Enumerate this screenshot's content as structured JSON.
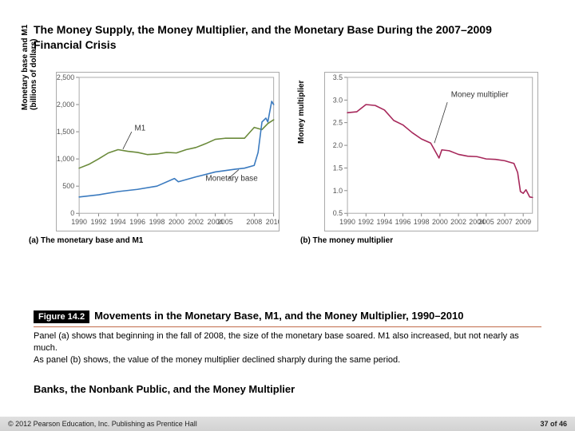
{
  "title": "The Money Supply, the Money Multiplier, and the Monetary Base During the 2007–2009 Financial Crisis",
  "panel_a": {
    "type": "line",
    "caption": "(a) The monetary base and M1",
    "ylabel": "Monetary base and M1\n(billions of dollars)",
    "xlim": [
      1990,
      2010
    ],
    "ylim": [
      0,
      2500
    ],
    "xtick_years": [
      1990,
      1992,
      1994,
      1996,
      1998,
      2000,
      2002,
      2004,
      2005,
      2008,
      2010
    ],
    "yticks": [
      0,
      500,
      "1,000",
      "1,500",
      "2,000",
      "2,500"
    ],
    "grid_color": "#aaaaaa",
    "series": [
      {
        "name": "M1",
        "label": "M1",
        "color": "#6a8a3a",
        "width": 1.6,
        "points": [
          [
            1990,
            830
          ],
          [
            1991,
            900
          ],
          [
            1992,
            1000
          ],
          [
            1993,
            1110
          ],
          [
            1994,
            1170
          ],
          [
            1995,
            1140
          ],
          [
            1996,
            1120
          ],
          [
            1997,
            1080
          ],
          [
            1998,
            1090
          ],
          [
            1999,
            1120
          ],
          [
            2000,
            1110
          ],
          [
            2001,
            1170
          ],
          [
            2002,
            1210
          ],
          [
            2003,
            1280
          ],
          [
            2004,
            1360
          ],
          [
            2005,
            1380
          ],
          [
            2006,
            1380
          ],
          [
            2007,
            1380
          ],
          [
            2008,
            1580
          ],
          [
            2008.8,
            1540
          ],
          [
            2009.4,
            1650
          ],
          [
            2010,
            1720
          ]
        ]
      },
      {
        "name": "Monetary base",
        "label": "Monetary base",
        "color": "#3a7abf",
        "width": 1.6,
        "points": [
          [
            1990,
            300
          ],
          [
            1992,
            340
          ],
          [
            1994,
            400
          ],
          [
            1996,
            440
          ],
          [
            1998,
            500
          ],
          [
            1999.8,
            640
          ],
          [
            2000.2,
            580
          ],
          [
            2002,
            670
          ],
          [
            2004,
            760
          ],
          [
            2006,
            810
          ],
          [
            2007,
            830
          ],
          [
            2008,
            880
          ],
          [
            2008.4,
            1120
          ],
          [
            2008.8,
            1680
          ],
          [
            2009.2,
            1750
          ],
          [
            2009.4,
            1680
          ],
          [
            2009.8,
            2060
          ],
          [
            2010,
            2000
          ]
        ]
      }
    ],
    "series_label_pos": {
      "M1": [
        1995.7,
        1520
      ],
      "Monetary base": [
        2003,
        600
      ]
    },
    "leader_lines": {
      "M1": [
        [
          1995.4,
          1500
        ],
        [
          1994.5,
          1180
        ]
      ],
      "Monetary base": [
        [
          2005.3,
          630
        ],
        [
          2006.4,
          800
        ]
      ]
    }
  },
  "panel_b": {
    "type": "line",
    "caption": "(b) The money multiplier",
    "ylabel": "Money multiplier",
    "xlim": [
      1990,
      2010
    ],
    "ylim": [
      0.5,
      3.5
    ],
    "xtick_years": [
      1990,
      1992,
      1994,
      1996,
      1998,
      2000,
      2002,
      2004,
      2005,
      2007,
      2009
    ],
    "yticks": [
      "0.5",
      "1.0",
      "1.5",
      "2.0",
      "2.5",
      "3.0",
      "3.5"
    ],
    "grid_color": "#aaaaaa",
    "series": [
      {
        "name": "Money multiplier",
        "label": "Money multiplier",
        "color": "#a6275a",
        "width": 1.6,
        "points": [
          [
            1990,
            2.72
          ],
          [
            1991,
            2.74
          ],
          [
            1992,
            2.9
          ],
          [
            1993,
            2.88
          ],
          [
            1994,
            2.78
          ],
          [
            1995,
            2.55
          ],
          [
            1996,
            2.45
          ],
          [
            1997,
            2.28
          ],
          [
            1998,
            2.14
          ],
          [
            1999,
            2.05
          ],
          [
            1999.9,
            1.72
          ],
          [
            2000.2,
            1.9
          ],
          [
            2001,
            1.88
          ],
          [
            2002,
            1.8
          ],
          [
            2003,
            1.76
          ],
          [
            2004,
            1.75
          ],
          [
            2005,
            1.7
          ],
          [
            2006,
            1.69
          ],
          [
            2007,
            1.66
          ],
          [
            2008,
            1.6
          ],
          [
            2008.4,
            1.4
          ],
          [
            2008.7,
            0.98
          ],
          [
            2009,
            0.94
          ],
          [
            2009.3,
            1.02
          ],
          [
            2009.7,
            0.86
          ],
          [
            2010,
            0.85
          ]
        ]
      }
    ],
    "series_label_pos": {
      "Money multiplier": [
        2001.2,
        3.07
      ]
    },
    "leader_lines": {
      "Money multiplier": [
        [
          2000.8,
          2.95
        ],
        [
          1999.4,
          2.05
        ]
      ]
    }
  },
  "figure_badge": "Figure 14.2",
  "figure_title": "Movements in the Monetary Base, M1, and the Money Multiplier, 1990–2010",
  "body_para1": "Panel (a) shows that beginning in the fall of 2008, the size of the monetary base soared. M1 also increased, but not nearly as much.",
  "body_para2": "As panel (b) shows, the value of the money multiplier declined sharply during the same period.",
  "section_head": "Banks, the Nonbank Public, and the Money Multiplier",
  "footer_left": "© 2012 Pearson Education, Inc. Publishing as Prentice Hall",
  "footer_page_current": "37",
  "footer_page_total": "46",
  "footer_of": "of"
}
